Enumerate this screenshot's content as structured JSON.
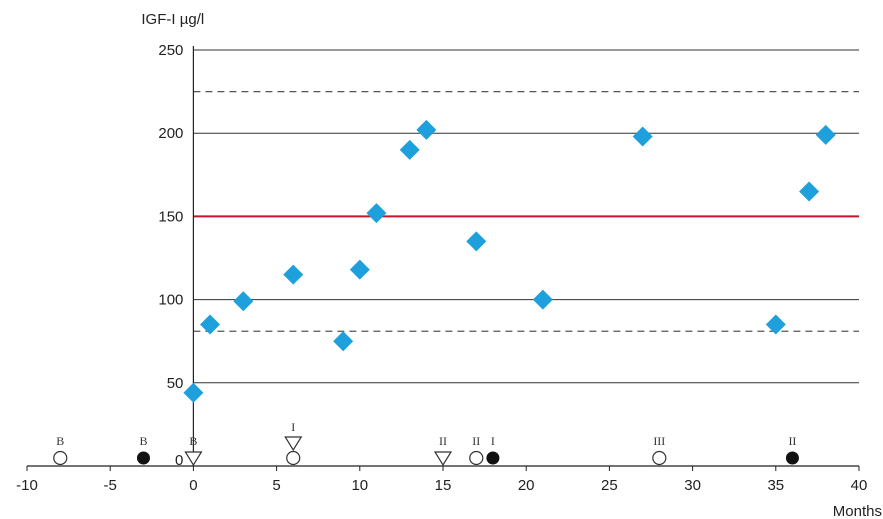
{
  "chart_data": {
    "type": "scatter",
    "ylabel": "IGF-I µg/l",
    "xlabel": "Months",
    "xlim": [
      -10,
      40
    ],
    "ylim": [
      0,
      250
    ],
    "x_ticks": [
      -10,
      -5,
      0,
      5,
      10,
      15,
      20,
      25,
      30,
      35,
      40
    ],
    "x_tick_labels": [
      "-10",
      "-5",
      "0",
      "5",
      "10",
      "15",
      "20",
      "25",
      "30",
      "35",
      "40"
    ],
    "y_ticks": [
      0,
      50,
      100,
      150,
      200,
      250
    ],
    "y_tick_labels": [
      "0",
      "50",
      "100",
      "150",
      "200",
      "250"
    ],
    "grid": "horizontal",
    "series": [
      {
        "marker": "diamond",
        "color": "#1ea0dc",
        "points": [
          {
            "x": 0,
            "y": 44
          },
          {
            "x": 1,
            "y": 85
          },
          {
            "x": 3,
            "y": 99
          },
          {
            "x": 6,
            "y": 115
          },
          {
            "x": 9,
            "y": 75
          },
          {
            "x": 10,
            "y": 118
          },
          {
            "x": 11,
            "y": 152
          },
          {
            "x": 13,
            "y": 190
          },
          {
            "x": 14,
            "y": 202
          },
          {
            "x": 17,
            "y": 135
          },
          {
            "x": 21,
            "y": 100
          },
          {
            "x": 27,
            "y": 198
          },
          {
            "x": 35,
            "y": 85
          },
          {
            "x": 37,
            "y": 165
          },
          {
            "x": 38,
            "y": 199
          }
        ]
      }
    ],
    "reference_lines": [
      {
        "y": 150,
        "style": "solid",
        "color": "#cc1133"
      },
      {
        "y": 225,
        "style": "dashed",
        "color": "#555555"
      },
      {
        "y": 81,
        "style": "dashed",
        "color": "#555555"
      }
    ],
    "events": [
      {
        "x": -8,
        "symbol": "open-circle",
        "label": "B"
      },
      {
        "x": -3,
        "symbol": "filled-circle",
        "label": "B"
      },
      {
        "x": 0,
        "symbol": "open-triangle-down",
        "label": "B"
      },
      {
        "x": 6,
        "symbol": "open-circle",
        "label": ""
      },
      {
        "x": 6,
        "symbol": "open-triangle-down-raised",
        "label": "I"
      },
      {
        "x": 15,
        "symbol": "open-triangle-down",
        "label": "II"
      },
      {
        "x": 17,
        "symbol": "open-circle",
        "label": "II"
      },
      {
        "x": 18,
        "symbol": "filled-circle",
        "label": "I"
      },
      {
        "x": 28,
        "symbol": "open-circle",
        "label": "III"
      },
      {
        "x": 36,
        "symbol": "filled-circle",
        "label": "II"
      }
    ]
  }
}
